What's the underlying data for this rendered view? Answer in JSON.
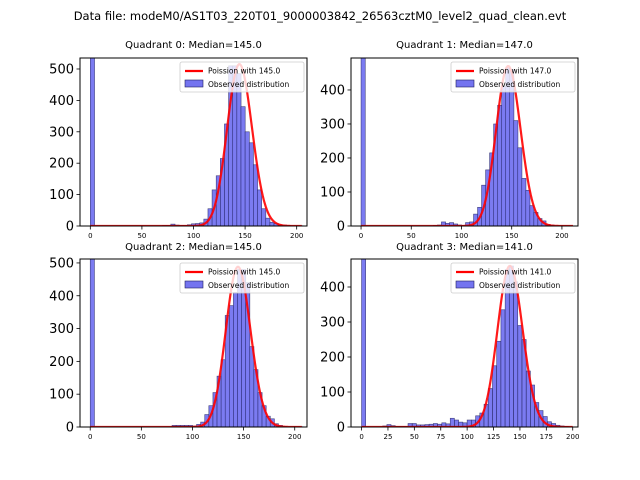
{
  "suptitle": "Data file: modeM0/AS1T03_220T01_9000003842_26563cztM0_level2_quad_clean.evt",
  "chart_data": [
    {
      "type": "bar",
      "title": "Quadrant 0: Median=145.0",
      "median": 145.0,
      "legend": [
        "Poission with 145.0",
        "Observed distribution"
      ],
      "legend_position": "top-right",
      "xlabel": "",
      "ylabel": "",
      "xlim": [
        -10,
        210
      ],
      "ylim": [
        0,
        535
      ],
      "xticks": [
        0,
        50,
        100,
        150,
        200
      ],
      "yticks": [
        0,
        100,
        200,
        300,
        400,
        500
      ],
      "bin_width": 4.1,
      "bins": [
        [
          0,
          1500
        ],
        [
          70,
          2
        ],
        [
          74,
          2
        ],
        [
          78,
          6
        ],
        [
          82,
          3
        ],
        [
          86,
          2
        ],
        [
          90,
          2
        ],
        [
          94,
          4
        ],
        [
          98,
          7
        ],
        [
          102,
          8
        ],
        [
          106,
          10
        ],
        [
          110,
          22
        ],
        [
          114,
          55
        ],
        [
          118,
          115
        ],
        [
          122,
          160
        ],
        [
          126,
          215
        ],
        [
          130,
          325
        ],
        [
          134,
          510
        ],
        [
          138,
          510
        ],
        [
          142,
          485
        ],
        [
          146,
          380
        ],
        [
          150,
          300
        ],
        [
          154,
          265
        ],
        [
          158,
          195
        ],
        [
          162,
          115
        ],
        [
          166,
          55
        ],
        [
          170,
          25
        ],
        [
          174,
          12
        ],
        [
          178,
          8
        ],
        [
          182,
          4
        ],
        [
          186,
          3
        ],
        [
          190,
          2
        ],
        [
          194,
          1
        ],
        [
          198,
          1
        ],
        [
          202,
          1
        ]
      ],
      "poisson_peak": 515
    },
    {
      "type": "bar",
      "title": "Quadrant 1: Median=147.0",
      "median": 147.0,
      "legend": [
        "Poission with 147.0",
        "Observed distribution"
      ],
      "legend_position": "top-right",
      "xlabel": "",
      "ylabel": "",
      "xlim": [
        -10,
        216
      ],
      "ylim": [
        0,
        494
      ],
      "xticks": [
        0,
        50,
        100,
        150,
        200
      ],
      "yticks": [
        0,
        100,
        200,
        300,
        400
      ],
      "bin_width": 4.2,
      "bins": [
        [
          0,
          1500
        ],
        [
          72,
          2
        ],
        [
          76,
          3
        ],
        [
          80,
          12
        ],
        [
          84,
          8
        ],
        [
          88,
          10
        ],
        [
          92,
          6
        ],
        [
          96,
          3
        ],
        [
          100,
          2
        ],
        [
          104,
          10
        ],
        [
          108,
          12
        ],
        [
          112,
          35
        ],
        [
          116,
          55
        ],
        [
          120,
          120
        ],
        [
          124,
          165
        ],
        [
          128,
          215
        ],
        [
          132,
          300
        ],
        [
          136,
          355
        ],
        [
          140,
          410
        ],
        [
          144,
          465
        ],
        [
          148,
          460
        ],
        [
          152,
          310
        ],
        [
          156,
          230
        ],
        [
          160,
          140
        ],
        [
          164,
          105
        ],
        [
          168,
          60
        ],
        [
          172,
          40
        ],
        [
          176,
          22
        ],
        [
          180,
          15
        ],
        [
          184,
          5
        ],
        [
          188,
          3
        ],
        [
          192,
          1
        ],
        [
          196,
          1
        ],
        [
          200,
          1
        ],
        [
          204,
          1
        ]
      ],
      "poisson_peak": 470
    },
    {
      "type": "bar",
      "title": "Quadrant 2: Median=145.0",
      "median": 145.0,
      "legend": [
        "Poission with 145.0",
        "Observed distribution"
      ],
      "legend_position": "top-right",
      "xlabel": "",
      "ylabel": "",
      "xlim": [
        -10,
        212
      ],
      "ylim": [
        0,
        512
      ],
      "xticks": [
        0,
        50,
        100,
        150,
        200
      ],
      "yticks": [
        0,
        100,
        200,
        300,
        400,
        500
      ],
      "bin_width": 4.1,
      "bins": [
        [
          0,
          1500
        ],
        [
          80,
          5
        ],
        [
          84,
          5
        ],
        [
          88,
          5
        ],
        [
          92,
          5
        ],
        [
          96,
          5
        ],
        [
          100,
          3
        ],
        [
          104,
          8
        ],
        [
          108,
          15
        ],
        [
          112,
          38
        ],
        [
          116,
          65
        ],
        [
          120,
          105
        ],
        [
          124,
          155
        ],
        [
          128,
          205
        ],
        [
          132,
          340
        ],
        [
          136,
          370
        ],
        [
          140,
          410
        ],
        [
          144,
          480
        ],
        [
          148,
          480
        ],
        [
          152,
          440
        ],
        [
          156,
          245
        ],
        [
          160,
          175
        ],
        [
          164,
          105
        ],
        [
          168,
          65
        ],
        [
          172,
          33
        ],
        [
          176,
          25
        ],
        [
          180,
          10
        ],
        [
          184,
          5
        ],
        [
          188,
          2
        ],
        [
          192,
          1
        ],
        [
          196,
          1
        ],
        [
          200,
          1
        ],
        [
          204,
          1
        ]
      ],
      "poisson_peak": 488
    },
    {
      "type": "bar",
      "title": "Quadrant 3: Median=141.0",
      "median": 141.0,
      "legend": [
        "Poission with 141.0",
        "Observed distribution"
      ],
      "legend_position": "top-right",
      "xlabel": "",
      "ylabel": "",
      "xlim": [
        -10,
        205
      ],
      "ylim": [
        0,
        480
      ],
      "xticks": [
        0,
        25,
        50,
        75,
        100,
        125,
        150,
        175,
        200
      ],
      "yticks": [
        0,
        100,
        200,
        300,
        400
      ],
      "bin_width": 3.9,
      "bins": [
        [
          0,
          1500
        ],
        [
          20,
          3
        ],
        [
          24,
          7
        ],
        [
          28,
          4
        ],
        [
          32,
          2
        ],
        [
          36,
          2
        ],
        [
          40,
          2
        ],
        [
          44,
          10
        ],
        [
          48,
          10
        ],
        [
          52,
          6
        ],
        [
          56,
          6
        ],
        [
          60,
          7
        ],
        [
          64,
          8
        ],
        [
          68,
          10
        ],
        [
          72,
          8
        ],
        [
          76,
          12
        ],
        [
          80,
          9
        ],
        [
          84,
          25
        ],
        [
          88,
          20
        ],
        [
          92,
          14
        ],
        [
          96,
          12
        ],
        [
          100,
          20
        ],
        [
          104,
          20
        ],
        [
          108,
          32
        ],
        [
          112,
          40
        ],
        [
          116,
          65
        ],
        [
          120,
          110
        ],
        [
          124,
          175
        ],
        [
          128,
          245
        ],
        [
          132,
          335
        ],
        [
          136,
          450
        ],
        [
          140,
          460
        ],
        [
          144,
          415
        ],
        [
          148,
          290
        ],
        [
          152,
          250
        ],
        [
          156,
          160
        ],
        [
          160,
          120
        ],
        [
          164,
          70
        ],
        [
          168,
          47
        ],
        [
          172,
          30
        ],
        [
          176,
          15
        ],
        [
          180,
          10
        ],
        [
          184,
          5
        ],
        [
          188,
          3
        ],
        [
          192,
          2
        ]
      ],
      "poisson_peak": 460
    }
  ]
}
